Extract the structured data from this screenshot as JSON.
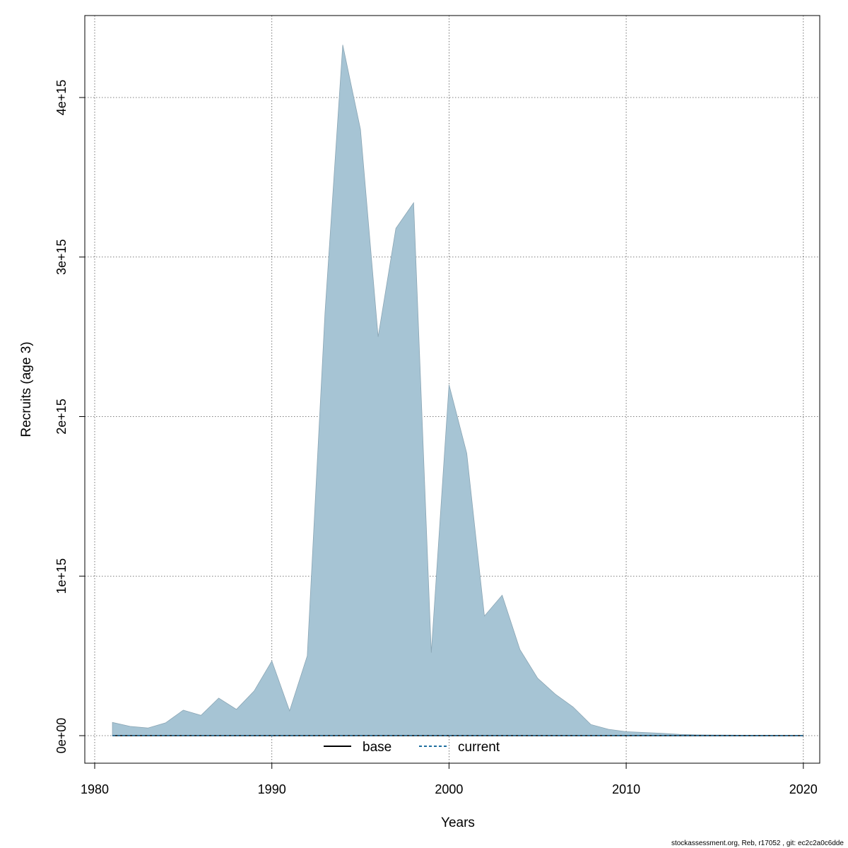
{
  "chart_data": {
    "type": "area",
    "title": "",
    "xlabel": "Years",
    "ylabel": "Recruits (age 3)",
    "xlim": [
      1980,
      2020
    ],
    "ylim": [
      0,
      4400000000000000.0
    ],
    "x_ticks": [
      1980,
      1990,
      2000,
      2010,
      2020
    ],
    "x_tick_labels": [
      "1980",
      "1990",
      "2000",
      "2010",
      "2020"
    ],
    "y_ticks": [
      0,
      1000000000000000.0,
      2000000000000000.0,
      3000000000000000.0,
      4000000000000000.0
    ],
    "y_tick_labels": [
      "0e+00",
      "1e+15",
      "2e+15",
      "3e+15",
      "4e+15"
    ],
    "grid": true,
    "band": {
      "color": "#a6c4d4",
      "x": [
        1981,
        1982,
        1983,
        1984,
        1985,
        1986,
        1987,
        1988,
        1989,
        1990,
        1991,
        1992,
        1993,
        1994,
        1995,
        1996,
        1997,
        1998,
        1999,
        2000,
        2001,
        2002,
        2003,
        2004,
        2005,
        2006,
        2007,
        2008,
        2009,
        2010,
        2011,
        2012,
        2013,
        2014,
        2015,
        2016,
        2017,
        2018,
        2019,
        2020
      ],
      "upper": [
        83000000000000.0,
        58000000000000.0,
        48000000000000.0,
        80000000000000.0,
        160000000000000.0,
        127000000000000.0,
        235000000000000.0,
        165000000000000.0,
        280000000000000.0,
        468000000000000.0,
        155000000000000.0,
        500000000000000.0,
        2650000000000000.0,
        4330000000000000.0,
        3800000000000000.0,
        2500000000000000.0,
        3180000000000000.0,
        3340000000000000.0,
        520000000000000.0,
        2200000000000000.0,
        1770000000000000.0,
        750000000000000.0,
        880000000000000.0,
        540000000000000.0,
        360000000000000.0,
        260000000000000.0,
        180000000000000.0,
        70000000000000.0,
        40000000000000.0,
        25000000000000.0,
        20000000000000.0,
        15000000000000.0,
        8000000000000.0,
        5000000000000.0,
        4000000000000.0,
        3000000000000.0,
        2000000000000.0,
        2000000000000.0,
        1000000000000.0,
        1000000000000.0
      ],
      "lower": [
        0,
        0,
        0,
        0,
        0,
        0,
        0,
        0,
        0,
        0,
        0,
        0,
        0,
        0,
        0,
        0,
        0,
        0,
        0,
        0,
        0,
        0,
        0,
        0,
        0,
        0,
        0,
        0,
        0,
        0,
        0,
        0,
        0,
        0,
        0,
        0,
        0,
        0,
        0,
        0
      ]
    },
    "series": [
      {
        "name": "base",
        "color": "#000000",
        "style": "solid",
        "x": [
          1981,
          2020
        ],
        "values": [
          0,
          0
        ]
      },
      {
        "name": "current",
        "color": "#1f6f9f",
        "style": "dashed",
        "x": [
          1981,
          2020
        ],
        "values": [
          0,
          0
        ]
      }
    ],
    "legend_position": "bottom-center",
    "footer": "stockassessment.org, Reb, r17052 , git: ec2c2a0c6dde"
  }
}
